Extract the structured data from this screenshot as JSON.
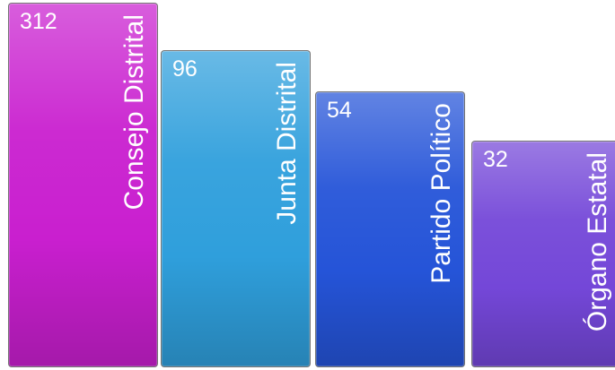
{
  "chart_data": {
    "type": "bar",
    "categories": [
      "Consejo Distrital",
      "Junta Distrital",
      "Partido Político",
      "Órgano Estatal"
    ],
    "values": [
      312,
      96,
      54,
      32
    ],
    "data_labels": [
      "312",
      "96",
      "54",
      "32"
    ],
    "colors": [
      "#c91fcf",
      "#2f9fdc",
      "#2554d8",
      "#7447d8"
    ],
    "title": "",
    "xlabel": "",
    "ylabel": "",
    "grid": false,
    "legend": "none"
  }
}
